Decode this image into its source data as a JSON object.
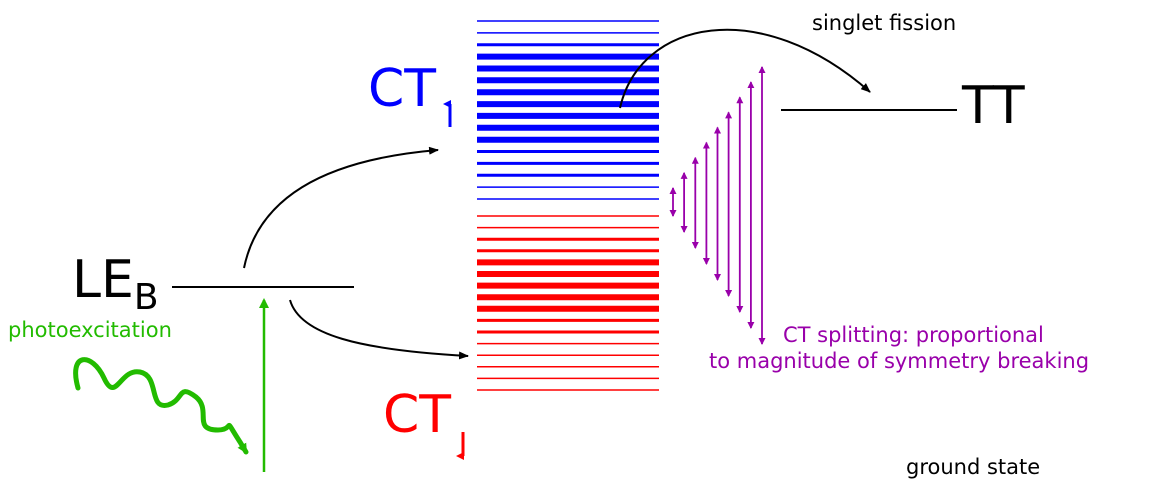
{
  "diagram": {
    "labels": {
      "le": "LE",
      "le_sub": "B",
      "ct": "CT",
      "tt": "TT",
      "photoexcitation": "photoexcitation",
      "singlet_fission": "singlet fission",
      "ct_splitting_line1": "CT splitting: proportional",
      "ct_splitting_line2": "to magnitude of symmetry breaking",
      "ground_state": "ground state"
    },
    "colors": {
      "black": "#000000",
      "blue": "#0000ff",
      "red": "#ff0000",
      "green": "#22bb00",
      "purple": "#9900aa"
    },
    "ct_up_manifold": {
      "color": "#0000ff",
      "line_weights": [
        "thin",
        "thin",
        "medium",
        "thick",
        "thick",
        "thick",
        "thick",
        "thick",
        "thick",
        "thick",
        "thick",
        "medium",
        "medium",
        "medium",
        "thin",
        "thin"
      ]
    },
    "ct_down_manifold": {
      "color": "#ff0000",
      "line_weights": [
        "thin",
        "thin",
        "medium",
        "medium",
        "thick",
        "thick",
        "thick",
        "thick",
        "thick",
        "medium",
        "medium",
        "thin",
        "thin",
        "thin",
        "thin",
        "thin"
      ]
    },
    "splitting_arrows_count": 9
  }
}
